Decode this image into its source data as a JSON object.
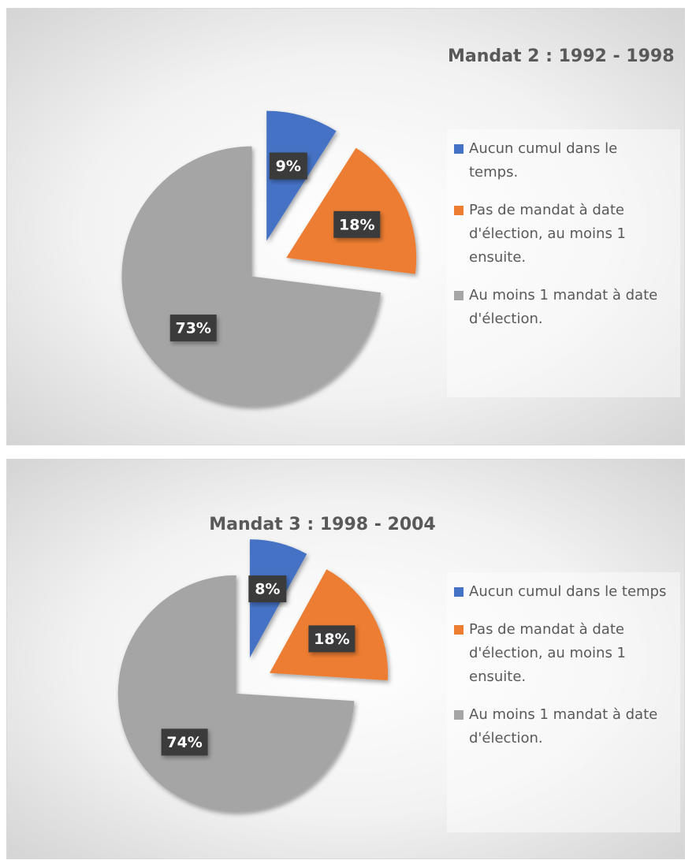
{
  "chart_data": [
    {
      "type": "pie",
      "title": "Mandat 2 : 1992 - 1998",
      "categories": [
        "Aucun cumul dans le temps.",
        "Pas de mandat à date d'élection, au moins 1 ensuite.",
        "Au moins 1 mandat à date d'élection."
      ],
      "values": [
        9,
        18,
        73
      ],
      "value_labels": [
        "9%",
        "18%",
        "73%"
      ],
      "colors": [
        "#4472c4",
        "#ed7d31",
        "#a5a5a5"
      ]
    },
    {
      "type": "pie",
      "title": "Mandat 3 : 1998 - 2004",
      "categories": [
        "Aucun cumul dans le temps",
        "Pas de mandat à date d'élection, au moins 1 ensuite.",
        "Au moins 1 mandat à date d'élection."
      ],
      "values": [
        8,
        18,
        74
      ],
      "value_labels": [
        "8%",
        "18%",
        "74%"
      ],
      "colors": [
        "#4472c4",
        "#ed7d31",
        "#a5a5a5"
      ]
    }
  ]
}
